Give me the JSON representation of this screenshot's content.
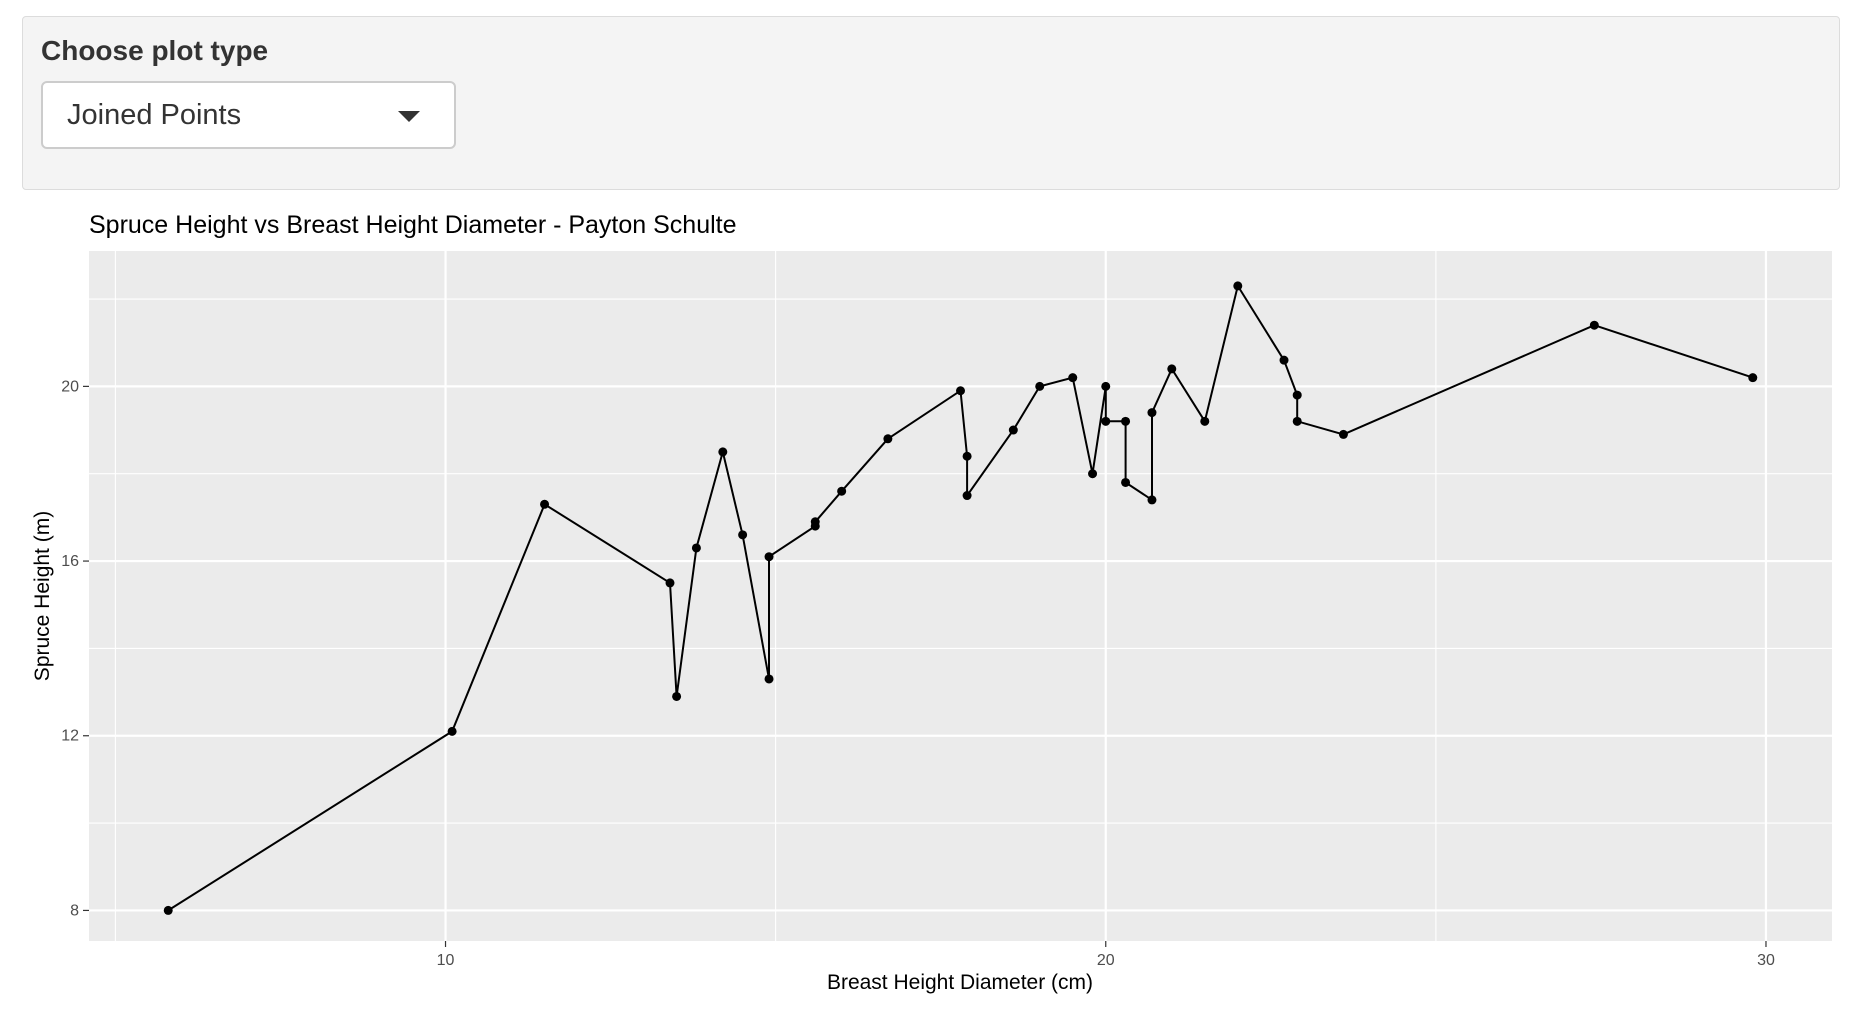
{
  "control": {
    "label": "Choose plot type",
    "selected_option": "Joined Points",
    "caret_icon": "caret-down-icon"
  },
  "colors": {
    "panel_background": "#ebebeb",
    "gridline": "#ffffff",
    "series": "#000000",
    "control_background": "#f4f4f4"
  },
  "chart_data": {
    "type": "line",
    "markers": true,
    "title": "Spruce Height vs Breast Height Diameter - Payton Schulte",
    "xlabel": "Breast Height Diameter (cm)",
    "ylabel": "Spruce Height (m)",
    "xlim": [
      4.6,
      31.0
    ],
    "ylim": [
      7.3,
      23.1
    ],
    "x_ticks": [
      10,
      20,
      30
    ],
    "y_ticks": [
      8,
      12,
      16,
      20
    ],
    "x_minor_ticks": [
      5,
      15,
      25
    ],
    "y_minor_ticks": [
      10,
      14,
      18,
      22
    ],
    "grid": true,
    "legend": "none",
    "series": [
      {
        "x": [
          5.8,
          10.1,
          11.5,
          13.4,
          13.5,
          13.8,
          14.2,
          14.5,
          14.9,
          14.9,
          15.6,
          15.6,
          16.0,
          16.7,
          17.8,
          17.9,
          17.9,
          18.6,
          19.0,
          19.5,
          19.8,
          20.0,
          20.0,
          20.3,
          20.3,
          20.7,
          20.7,
          21.0,
          21.5,
          22.0,
          22.7,
          22.9,
          22.9,
          23.6,
          27.4,
          29.8
        ],
        "y": [
          8.0,
          12.1,
          17.3,
          15.5,
          12.9,
          16.3,
          18.5,
          16.6,
          13.3,
          16.1,
          16.8,
          16.9,
          17.6,
          18.8,
          19.9,
          18.4,
          17.5,
          19.0,
          20.0,
          20.2,
          18.0,
          20.0,
          19.2,
          19.2,
          17.8,
          17.4,
          19.4,
          20.4,
          19.2,
          22.3,
          20.6,
          19.8,
          19.2,
          18.9,
          21.4,
          20.2
        ]
      }
    ]
  }
}
